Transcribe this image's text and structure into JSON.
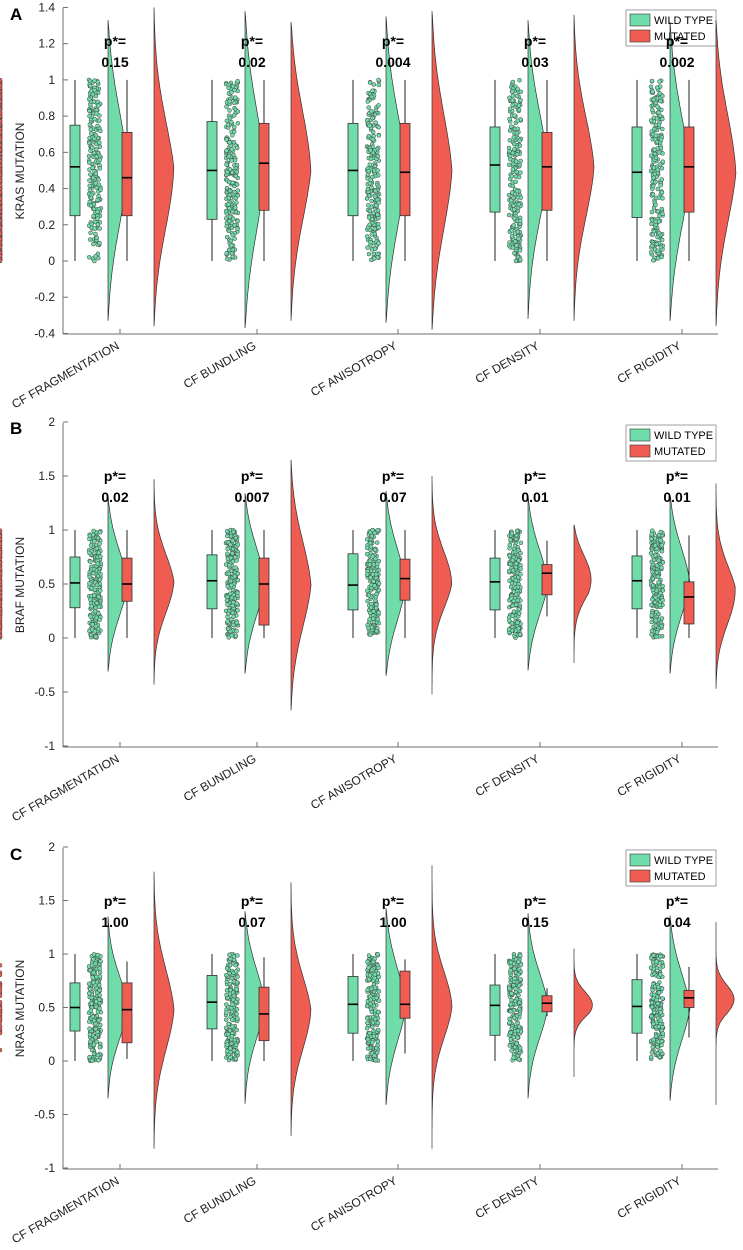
{
  "categories": [
    "CF FRAGMENTATION",
    "CF BUNDLING",
    "CF ANISOTROPY",
    "CF DENSITY",
    "CF RIGIDITY"
  ],
  "legend": {
    "wild_type": "WILD TYPE",
    "mutated": "MUTATED",
    "placement": "top-right"
  },
  "colors": {
    "wild_type": "#6fdcaa",
    "mutated": "#ef5c51",
    "axis": "#6f6f6f"
  },
  "chart_data": [
    {
      "type": "raincloud",
      "panel_label": "A",
      "ylabel": "KRAS MUTATION",
      "ylim": [
        -0.4,
        1.4
      ],
      "yticks": [
        "-0.4",
        "-0.2",
        "0",
        "0.2",
        "0.4",
        "0.6",
        "0.8",
        "1",
        "1.2",
        "1.4"
      ],
      "p_label": "p*=",
      "p_values": [
        "0.15",
        "0.02",
        "0.004",
        "0.03",
        "0.002"
      ],
      "series": [
        {
          "name": "WILD TYPE",
          "box": [
            {
              "min": 0,
              "q1": 0.25,
              "median": 0.52,
              "q3": 0.75,
              "max": 1,
              "n": 220
            },
            {
              "min": 0,
              "q1": 0.23,
              "median": 0.5,
              "q3": 0.77,
              "max": 1,
              "n": 220
            },
            {
              "min": 0,
              "q1": 0.25,
              "median": 0.5,
              "q3": 0.76,
              "max": 1,
              "n": 220
            },
            {
              "min": 0,
              "q1": 0.27,
              "median": 0.53,
              "q3": 0.74,
              "max": 1,
              "n": 220
            },
            {
              "min": 0,
              "q1": 0.24,
              "median": 0.49,
              "q3": 0.74,
              "max": 1,
              "n": 220
            }
          ]
        },
        {
          "name": "MUTATED",
          "box": [
            {
              "min": 0,
              "q1": 0.25,
              "median": 0.46,
              "q3": 0.71,
              "max": 1,
              "n": 140
            },
            {
              "min": 0,
              "q1": 0.28,
              "median": 0.54,
              "q3": 0.76,
              "max": 1,
              "n": 140
            },
            {
              "min": 0,
              "q1": 0.25,
              "median": 0.49,
              "q3": 0.76,
              "max": 1,
              "n": 140
            },
            {
              "min": 0,
              "q1": 0.28,
              "median": 0.52,
              "q3": 0.71,
              "max": 1,
              "n": 140
            },
            {
              "min": 0,
              "q1": 0.27,
              "median": 0.52,
              "q3": 0.74,
              "max": 1,
              "n": 140
            }
          ]
        }
      ],
      "cloud_range": [
        {
          "wild": [
            -0.33,
            1.33
          ],
          "mutated": [
            -0.36,
            1.4
          ]
        },
        {
          "wild": [
            -0.37,
            1.38
          ],
          "mutated": [
            -0.33,
            1.32
          ]
        },
        {
          "wild": [
            -0.34,
            1.35
          ],
          "mutated": [
            -0.38,
            1.38
          ]
        },
        {
          "wild": [
            -0.32,
            1.33
          ],
          "mutated": [
            -0.33,
            1.36
          ]
        },
        {
          "wild": [
            -0.33,
            1.32
          ],
          "mutated": [
            -0.36,
            1.33
          ]
        }
      ]
    },
    {
      "type": "raincloud",
      "panel_label": "B",
      "ylabel": "BRAF MUTATION",
      "ylim": [
        -1,
        2
      ],
      "yticks": [
        "-1",
        "-0.5",
        "0",
        "0.5",
        "1",
        "1.5",
        "2"
      ],
      "p_label": "p*=",
      "p_values": [
        "0.02",
        "0.007",
        "0.07",
        "0.01",
        "0.01"
      ],
      "series": [
        {
          "name": "WILD TYPE",
          "box": [
            {
              "min": 0,
              "q1": 0.28,
              "median": 0.51,
              "q3": 0.75,
              "max": 1,
              "n": 200
            },
            {
              "min": 0,
              "q1": 0.27,
              "median": 0.53,
              "q3": 0.77,
              "max": 1,
              "n": 200
            },
            {
              "min": 0,
              "q1": 0.26,
              "median": 0.49,
              "q3": 0.78,
              "max": 1,
              "n": 200
            },
            {
              "min": 0,
              "q1": 0.26,
              "median": 0.52,
              "q3": 0.74,
              "max": 1,
              "n": 200
            },
            {
              "min": 0,
              "q1": 0.27,
              "median": 0.53,
              "q3": 0.76,
              "max": 1,
              "n": 200
            }
          ]
        },
        {
          "name": "MUTATED",
          "box": [
            {
              "min": 0,
              "q1": 0.34,
              "median": 0.5,
              "q3": 0.74,
              "max": 1,
              "n": 40
            },
            {
              "min": 0,
              "q1": 0.12,
              "median": 0.5,
              "q3": 0.74,
              "max": 1,
              "n": 40
            },
            {
              "min": 0,
              "q1": 0.35,
              "median": 0.55,
              "q3": 0.73,
              "max": 1,
              "n": 40
            },
            {
              "min": 0.2,
              "q1": 0.4,
              "median": 0.6,
              "q3": 0.68,
              "max": 0.9,
              "n": 30
            },
            {
              "min": 0,
              "q1": 0.13,
              "median": 0.38,
              "q3": 0.52,
              "max": 0.95,
              "n": 30
            }
          ]
        }
      ],
      "cloud_range": [
        {
          "wild": [
            -0.31,
            1.31
          ],
          "mutated": [
            -0.43,
            1.47
          ]
        },
        {
          "wild": [
            -0.33,
            1.34
          ],
          "mutated": [
            -0.67,
            1.65
          ]
        },
        {
          "wild": [
            -0.35,
            1.36
          ],
          "mutated": [
            -0.52,
            1.5
          ]
        },
        {
          "wild": [
            -0.3,
            1.31
          ],
          "mutated": [
            -0.23,
            1.05
          ]
        },
        {
          "wild": [
            -0.33,
            1.33
          ],
          "mutated": [
            -0.47,
            1.43
          ]
        }
      ]
    },
    {
      "type": "raincloud",
      "panel_label": "C",
      "ylabel": "NRAS MUTATION",
      "ylim": [
        -1,
        2
      ],
      "yticks": [
        "-1",
        "-0.5",
        "0",
        "0.5",
        "1",
        "1.5",
        "2"
      ],
      "p_label": "p*=",
      "p_values": [
        "1.00",
        "0.07",
        "1.00",
        "0.15",
        "0.04"
      ],
      "series": [
        {
          "name": "WILD TYPE",
          "box": [
            {
              "min": 0,
              "q1": 0.28,
              "median": 0.5,
              "q3": 0.73,
              "max": 1,
              "n": 200
            },
            {
              "min": 0,
              "q1": 0.3,
              "median": 0.55,
              "q3": 0.8,
              "max": 1,
              "n": 200
            },
            {
              "min": 0,
              "q1": 0.26,
              "median": 0.53,
              "q3": 0.79,
              "max": 1,
              "n": 200
            },
            {
              "min": 0,
              "q1": 0.24,
              "median": 0.52,
              "q3": 0.71,
              "max": 1,
              "n": 200
            },
            {
              "min": 0,
              "q1": 0.26,
              "median": 0.51,
              "q3": 0.76,
              "max": 1,
              "n": 200
            }
          ]
        },
        {
          "name": "MUTATED",
          "box": [
            {
              "min": 0.02,
              "q1": 0.17,
              "median": 0.48,
              "q3": 0.73,
              "max": 0.93,
              "n": 8
            },
            {
              "min": 0,
              "q1": 0.19,
              "median": 0.44,
              "q3": 0.69,
              "max": 0.97,
              "n": 8
            },
            {
              "min": 0.07,
              "q1": 0.4,
              "median": 0.53,
              "q3": 0.84,
              "max": 0.95,
              "n": 8
            },
            {
              "min": 0.42,
              "q1": 0.46,
              "median": 0.54,
              "q3": 0.61,
              "max": 0.68,
              "n": 7
            },
            {
              "min": 0.22,
              "q1": 0.5,
              "median": 0.59,
              "q3": 0.66,
              "max": 0.88,
              "n": 7
            }
          ]
        }
      ],
      "cloud_range": [
        {
          "wild": [
            -0.35,
            1.35
          ],
          "mutated": [
            -0.82,
            1.77
          ]
        },
        {
          "wild": [
            -0.4,
            1.4
          ],
          "mutated": [
            -0.7,
            1.67
          ]
        },
        {
          "wild": [
            -0.41,
            1.43
          ],
          "mutated": [
            -0.82,
            1.83
          ]
        },
        {
          "wild": [
            -0.35,
            1.38
          ],
          "mutated": [
            -0.15,
            1.05
          ]
        },
        {
          "wild": [
            -0.37,
            1.36
          ],
          "mutated": [
            -0.41,
            1.3
          ]
        }
      ]
    }
  ]
}
